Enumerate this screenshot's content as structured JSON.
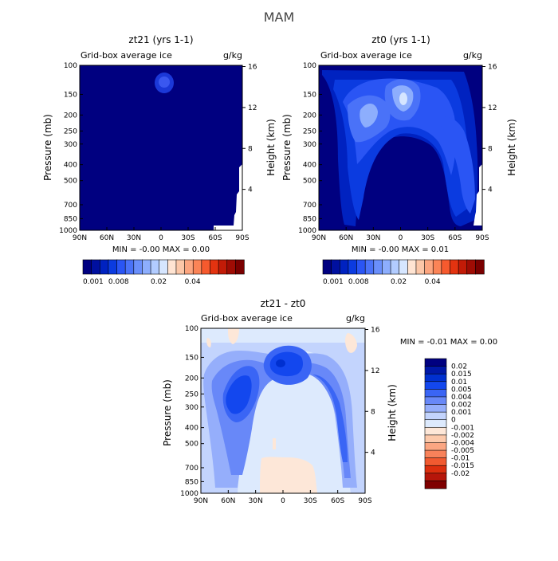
{
  "page_title": "MAM",
  "panels": [
    {
      "title": "zt21 (yrs 1-1)",
      "variable": "Grid-box average ice",
      "units": "g/kg",
      "ylabel": "Pressure (mb)",
      "y2label": "Height (km)",
      "stats": "MIN =  -0.00   MAX =   0.00"
    },
    {
      "title": "zt0 (yrs 1-1)",
      "variable": "Grid-box average ice",
      "units": "g/kg",
      "ylabel": "Pressure (mb)",
      "y2label": "Height (km)",
      "stats": "MIN =  -0.00   MAX =   0.01"
    },
    {
      "title": "zt21 - zt0",
      "variable": "Grid-box average ice",
      "units": "g/kg",
      "ylabel": "Pressure (mb)",
      "y2label": "Height (km)",
      "stats": "MIN =  -0.01   MAX =   0.00"
    }
  ],
  "axes": {
    "x_ticks": [
      "90N",
      "60N",
      "30N",
      "0",
      "30S",
      "60S",
      "90S"
    ],
    "pressure_ticks": [
      "100",
      "150",
      "200",
      "250",
      "300",
      "400",
      "500",
      "700",
      "850",
      "1000"
    ],
    "height_ticks": [
      "16",
      "12",
      "8",
      "4"
    ]
  },
  "colorbar_top": {
    "colors": [
      "#000080",
      "#00109f",
      "#0022c0",
      "#0b3be0",
      "#2a55f4",
      "#4a72f8",
      "#6a8ffb",
      "#8daefd",
      "#b2ccff",
      "#d6e6ff",
      "#ffe4d2",
      "#fcc7a8",
      "#fca57f",
      "#fb8457",
      "#f65a2e",
      "#e33310",
      "#c21b07",
      "#9f0c04",
      "#7a0000"
    ],
    "labels": [
      "0.001",
      "0.008",
      "0.02",
      "0.04"
    ],
    "label_index": [
      0,
      3,
      8,
      12
    ]
  },
  "colorbar_diff": {
    "colors": [
      "#000080",
      "#0018a8",
      "#0030d0",
      "#1347ee",
      "#3a65f5",
      "#6888f8",
      "#95aefb",
      "#c3d4fd",
      "#ddeafd",
      "#fde7d8",
      "#fcc9ab",
      "#fba682",
      "#f8825a",
      "#f15a30",
      "#dc2f0e",
      "#b6160a",
      "#7f0000"
    ],
    "labels": [
      "0.02",
      "0.015",
      "0.01",
      "0.005",
      "0.004",
      "0.002",
      "0.001",
      "0",
      "-0.001",
      "-0.002",
      "-0.004",
      "-0.005",
      "-0.01",
      "-0.015",
      "-0.02"
    ]
  },
  "chart_data": [
    {
      "type": "heatmap",
      "title": "zt21 (yrs 1-1)",
      "subtitle": "Grid-box average ice",
      "units": "g/kg",
      "xlabel": "",
      "ylabel": "Pressure (mb)",
      "y2label": "Height (km)",
      "x_range": [
        "90N",
        "90S"
      ],
      "y_range_mb": [
        1000,
        100
      ],
      "y2_range_km": [
        0,
        16
      ],
      "min": -0.0,
      "max": 0.0,
      "features": [
        {
          "lat": 0,
          "p_mb": 200,
          "value": 0.001,
          "desc": "tiny maximum near equator"
        }
      ]
    },
    {
      "type": "heatmap",
      "title": "zt0 (yrs 1-1)",
      "subtitle": "Grid-box average ice",
      "units": "g/kg",
      "xlabel": "",
      "ylabel": "Pressure (mb)",
      "y2label": "Height (km)",
      "x_range": [
        "90N",
        "90S"
      ],
      "y_range_mb": [
        1000,
        100
      ],
      "y2_range_km": [
        0,
        16
      ],
      "min": -0.0,
      "max": 0.01,
      "features": [
        {
          "lat": 40,
          "p_mb": 380,
          "value": 0.008,
          "desc": "NH midlatitude maximum"
        },
        {
          "lat": 0,
          "p_mb": 250,
          "value": 0.01,
          "desc": "tropical upper-troposphere maximum"
        },
        {
          "lat": -50,
          "p_mb": 500,
          "value": 0.004,
          "desc": "SH midlatitude band"
        }
      ]
    },
    {
      "type": "heatmap",
      "title": "zt21 - zt0",
      "subtitle": "Grid-box average ice",
      "units": "g/kg",
      "xlabel": "",
      "ylabel": "Pressure (mb)",
      "y2label": "Height (km)",
      "x_range": [
        "90N",
        "90S"
      ],
      "y_range_mb": [
        1000,
        100
      ],
      "y2_range_km": [
        0,
        16
      ],
      "min": -0.01,
      "max": 0.0,
      "features": [
        {
          "lat": 40,
          "p_mb": 400,
          "value": -0.01,
          "desc": "NH midlatitude negative maximum"
        },
        {
          "lat": 0,
          "p_mb": 300,
          "value": -0.01,
          "desc": "tropical upper negative maximum"
        },
        {
          "lat": -60,
          "p_mb": 550,
          "value": -0.005,
          "desc": "SH midlatitude negative band"
        },
        {
          "lat": -10,
          "p_mb": 950,
          "value": 0.0005,
          "desc": "weak positive near surface"
        }
      ]
    }
  ]
}
